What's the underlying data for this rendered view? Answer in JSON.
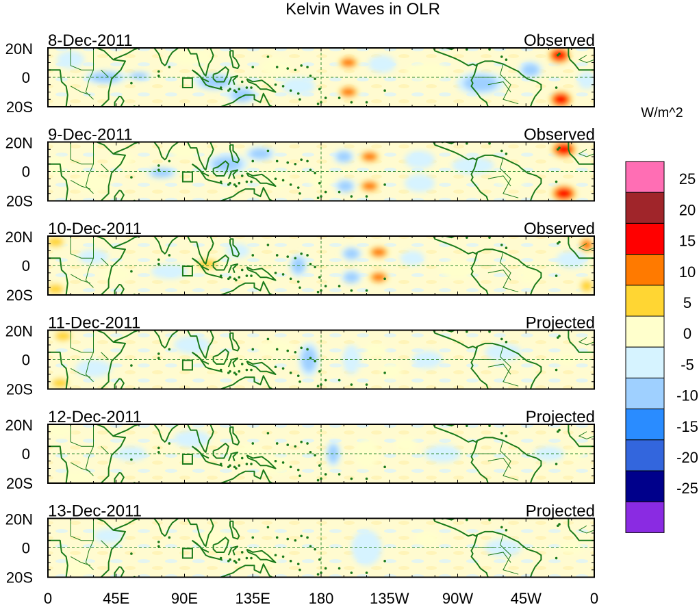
{
  "title": "Kelvin Waves in OLR",
  "units_label": "W/m^2",
  "lat_labels": [
    "20N",
    "0",
    "20S"
  ],
  "lon_labels": [
    "0",
    "45E",
    "90E",
    "135E",
    "180",
    "135W",
    "90W",
    "45W",
    "0"
  ],
  "lon_values": [
    0,
    45,
    90,
    135,
    180,
    225,
    270,
    315,
    360
  ],
  "panels": [
    {
      "date": "8-Dec-2011",
      "kind": "Observed",
      "anomalies": [
        {
          "lon": 15,
          "lat": 12,
          "w": 9,
          "h": 6,
          "v": -5
        },
        {
          "lon": 38,
          "lat": 0,
          "w": 14,
          "h": 5,
          "v": -8
        },
        {
          "lon": 60,
          "lat": 1,
          "w": 8,
          "h": 3,
          "v": -11
        },
        {
          "lon": 95,
          "lat": 14,
          "w": 14,
          "h": 6,
          "v": 4
        },
        {
          "lon": 110,
          "lat": -3,
          "w": 14,
          "h": 6,
          "v": -9
        },
        {
          "lon": 128,
          "lat": -12,
          "w": 10,
          "h": 6,
          "v": -12
        },
        {
          "lon": 150,
          "lat": 7,
          "w": 10,
          "h": 6,
          "v": 5
        },
        {
          "lon": 165,
          "lat": -6,
          "w": 11,
          "h": 6,
          "v": -6
        },
        {
          "lon": 198,
          "lat": 10,
          "w": 8,
          "h": 5,
          "v": 14
        },
        {
          "lon": 198,
          "lat": -10,
          "w": 8,
          "h": 5,
          "v": 14
        },
        {
          "lon": 220,
          "lat": 9,
          "w": 9,
          "h": 6,
          "v": -7
        },
        {
          "lon": 250,
          "lat": 4,
          "w": 14,
          "h": 6,
          "v": 4
        },
        {
          "lon": 285,
          "lat": -4,
          "w": 16,
          "h": 8,
          "v": -10
        },
        {
          "lon": 318,
          "lat": 5,
          "w": 8,
          "h": 6,
          "v": -8
        },
        {
          "lon": 337,
          "lat": 15,
          "w": 9,
          "h": 7,
          "v": 18
        },
        {
          "lon": 338,
          "lat": -15,
          "w": 9,
          "h": 7,
          "v": 18
        },
        {
          "lon": 355,
          "lat": -2,
          "w": 6,
          "h": 6,
          "v": -6
        }
      ]
    },
    {
      "date": "9-Dec-2011",
      "kind": "Observed",
      "anomalies": [
        {
          "lon": 5,
          "lat": 4,
          "w": 8,
          "h": 6,
          "v": 6
        },
        {
          "lon": 30,
          "lat": -8,
          "w": 12,
          "h": 6,
          "v": 5
        },
        {
          "lon": 48,
          "lat": 8,
          "w": 8,
          "h": 5,
          "v": 5
        },
        {
          "lon": 75,
          "lat": -1,
          "w": 10,
          "h": 4,
          "v": -12
        },
        {
          "lon": 90,
          "lat": 14,
          "w": 10,
          "h": 5,
          "v": 5
        },
        {
          "lon": 118,
          "lat": 5,
          "w": 14,
          "h": 7,
          "v": -12
        },
        {
          "lon": 140,
          "lat": 12,
          "w": 10,
          "h": 5,
          "v": -9
        },
        {
          "lon": 150,
          "lat": -6,
          "w": 10,
          "h": 6,
          "v": 6
        },
        {
          "lon": 180,
          "lat": -6,
          "w": 8,
          "h": 6,
          "v": 6
        },
        {
          "lon": 195,
          "lat": 10,
          "w": 7,
          "h": 5,
          "v": -10
        },
        {
          "lon": 196,
          "lat": -10,
          "w": 7,
          "h": 5,
          "v": -10
        },
        {
          "lon": 212,
          "lat": 10,
          "w": 8,
          "h": 5,
          "v": 13
        },
        {
          "lon": 212,
          "lat": -10,
          "w": 8,
          "h": 5,
          "v": 13
        },
        {
          "lon": 245,
          "lat": 8,
          "w": 10,
          "h": 6,
          "v": -6
        },
        {
          "lon": 245,
          "lat": -8,
          "w": 10,
          "h": 6,
          "v": -5
        },
        {
          "lon": 280,
          "lat": 4,
          "w": 14,
          "h": 6,
          "v": -4
        },
        {
          "lon": 305,
          "lat": -4,
          "w": 10,
          "h": 7,
          "v": 5
        },
        {
          "lon": 340,
          "lat": 15,
          "w": 10,
          "h": 7,
          "v": 18
        },
        {
          "lon": 340,
          "lat": -15,
          "w": 10,
          "h": 7,
          "v": 19
        }
      ]
    },
    {
      "date": "10-Dec-2011",
      "kind": "Observed",
      "anomalies": [
        {
          "lon": 5,
          "lat": 16,
          "w": 8,
          "h": 5,
          "v": 12
        },
        {
          "lon": 5,
          "lat": -16,
          "w": 8,
          "h": 5,
          "v": 12
        },
        {
          "lon": 30,
          "lat": 6,
          "w": 10,
          "h": 5,
          "v": -6
        },
        {
          "lon": 45,
          "lat": -6,
          "w": 10,
          "h": 5,
          "v": 4
        },
        {
          "lon": 80,
          "lat": -4,
          "w": 12,
          "h": 5,
          "v": -4
        },
        {
          "lon": 105,
          "lat": 1,
          "w": 10,
          "h": 5,
          "v": 12
        },
        {
          "lon": 125,
          "lat": 10,
          "w": 8,
          "h": 5,
          "v": -7
        },
        {
          "lon": 140,
          "lat": -8,
          "w": 10,
          "h": 5,
          "v": 5
        },
        {
          "lon": 165,
          "lat": 0,
          "w": 6,
          "h": 8,
          "v": -12
        },
        {
          "lon": 200,
          "lat": 8,
          "w": 7,
          "h": 5,
          "v": -11
        },
        {
          "lon": 200,
          "lat": -8,
          "w": 7,
          "h": 5,
          "v": -11
        },
        {
          "lon": 218,
          "lat": 9,
          "w": 8,
          "h": 5,
          "v": 13
        },
        {
          "lon": 218,
          "lat": -8,
          "w": 8,
          "h": 5,
          "v": 13
        },
        {
          "lon": 240,
          "lat": 5,
          "w": 8,
          "h": 5,
          "v": -6
        },
        {
          "lon": 270,
          "lat": -3,
          "w": 12,
          "h": 6,
          "v": 4
        },
        {
          "lon": 318,
          "lat": -6,
          "w": 8,
          "h": 6,
          "v": 6
        },
        {
          "lon": 345,
          "lat": 4,
          "w": 10,
          "h": 6,
          "v": -6
        },
        {
          "lon": 355,
          "lat": 14,
          "w": 6,
          "h": 6,
          "v": 13
        },
        {
          "lon": 355,
          "lat": -14,
          "w": 6,
          "h": 6,
          "v": 12
        }
      ]
    },
    {
      "date": "11-Dec-2011",
      "kind": "Projected",
      "anomalies": [
        {
          "lon": 10,
          "lat": 16,
          "w": 8,
          "h": 5,
          "v": 12
        },
        {
          "lon": 8,
          "lat": -16,
          "w": 8,
          "h": 5,
          "v": 9
        },
        {
          "lon": 30,
          "lat": -6,
          "w": 12,
          "h": 6,
          "v": -5
        },
        {
          "lon": 95,
          "lat": 10,
          "w": 12,
          "h": 6,
          "v": -5
        },
        {
          "lon": 120,
          "lat": -4,
          "w": 16,
          "h": 6,
          "v": 6
        },
        {
          "lon": 150,
          "lat": 8,
          "w": 12,
          "h": 5,
          "v": 5
        },
        {
          "lon": 172,
          "lat": 0,
          "w": 7,
          "h": 12,
          "v": -12
        },
        {
          "lon": 200,
          "lat": 0,
          "w": 6,
          "h": 10,
          "v": -5
        },
        {
          "lon": 216,
          "lat": 6,
          "w": 7,
          "h": 5,
          "v": 5
        },
        {
          "lon": 226,
          "lat": -8,
          "w": 7,
          "h": 5,
          "v": 7
        },
        {
          "lon": 250,
          "lat": 0,
          "w": 10,
          "h": 6,
          "v": -4
        },
        {
          "lon": 300,
          "lat": 5,
          "w": 12,
          "h": 6,
          "v": -4
        },
        {
          "lon": 342,
          "lat": 0,
          "w": 6,
          "h": 4,
          "v": 5
        }
      ]
    },
    {
      "date": "12-Dec-2011",
      "kind": "Projected",
      "anomalies": [
        {
          "lon": 8,
          "lat": 16,
          "w": 8,
          "h": 5,
          "v": 5
        },
        {
          "lon": 20,
          "lat": -16,
          "w": 10,
          "h": 5,
          "v": 5
        },
        {
          "lon": 55,
          "lat": 0,
          "w": 10,
          "h": 5,
          "v": -4
        },
        {
          "lon": 95,
          "lat": 10,
          "w": 12,
          "h": 6,
          "v": -5
        },
        {
          "lon": 130,
          "lat": 0,
          "w": 12,
          "h": 6,
          "v": 6
        },
        {
          "lon": 150,
          "lat": -8,
          "w": 10,
          "h": 6,
          "v": 5
        },
        {
          "lon": 188,
          "lat": 0,
          "w": 5,
          "h": 9,
          "v": -12
        },
        {
          "lon": 210,
          "lat": 0,
          "w": 8,
          "h": 10,
          "v": 4
        },
        {
          "lon": 236,
          "lat": 6,
          "w": 7,
          "h": 5,
          "v": 5
        },
        {
          "lon": 260,
          "lat": 0,
          "w": 12,
          "h": 6,
          "v": -4
        },
        {
          "lon": 330,
          "lat": 0,
          "w": 10,
          "h": 5,
          "v": -4
        },
        {
          "lon": 348,
          "lat": 0,
          "w": 6,
          "h": 4,
          "v": 5
        }
      ]
    },
    {
      "date": "13-Dec-2011",
      "kind": "Projected",
      "anomalies": [
        {
          "lon": 20,
          "lat": -14,
          "w": 10,
          "h": 5,
          "v": 5
        },
        {
          "lon": 40,
          "lat": 8,
          "w": 10,
          "h": 5,
          "v": -4
        },
        {
          "lon": 110,
          "lat": 5,
          "w": 12,
          "h": 6,
          "v": 4
        },
        {
          "lon": 140,
          "lat": -8,
          "w": 12,
          "h": 6,
          "v": 4
        },
        {
          "lon": 210,
          "lat": 0,
          "w": 10,
          "h": 12,
          "v": -7
        },
        {
          "lon": 250,
          "lat": 6,
          "w": 8,
          "h": 5,
          "v": 4
        },
        {
          "lon": 300,
          "lat": 0,
          "w": 12,
          "h": 6,
          "v": -4
        },
        {
          "lon": 345,
          "lat": 0,
          "w": 8,
          "h": 4,
          "v": 4
        }
      ]
    }
  ],
  "colorbar": {
    "tick_labels": [
      "25",
      "20",
      "15",
      "10",
      "5",
      "0",
      "-5",
      "-10",
      "-15",
      "-20",
      "-25"
    ],
    "levels": [
      {
        "color": "#ff6eb4"
      },
      {
        "color": "#a0252a"
      },
      {
        "color": "#ff0000"
      },
      {
        "color": "#ff7a00"
      },
      {
        "color": "#ffd633"
      },
      {
        "color": "#ffffcc"
      },
      {
        "color": "#d6f3ff"
      },
      {
        "color": "#9fd0ff"
      },
      {
        "color": "#2a8cff"
      },
      {
        "color": "#3366dd"
      },
      {
        "color": "#00008b"
      },
      {
        "color": "#8a2be2"
      }
    ]
  }
}
